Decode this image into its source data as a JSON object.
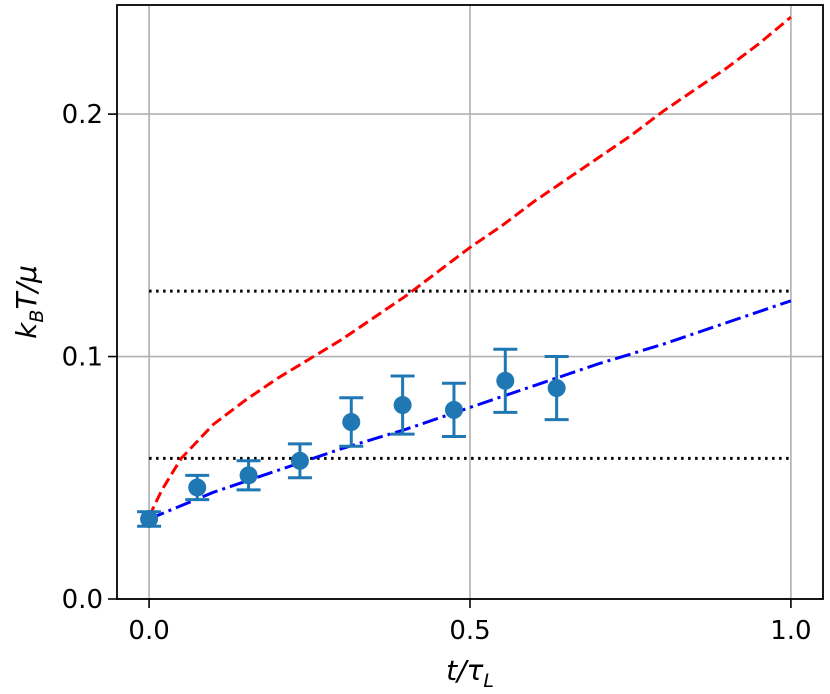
{
  "chart_data": {
    "type": "scatter",
    "title": "",
    "xlabel": "t/τ",
    "xlabel_sub": "L",
    "ylabel": "k",
    "ylabel_sub": "B",
    "ylabel_rest": "T/μ",
    "xlim": [
      -0.05,
      1.05
    ],
    "ylim": [
      0.0,
      0.245
    ],
    "xticks": [
      {
        "value": 0.0,
        "label": "0.0"
      },
      {
        "value": 0.5,
        "label": "0.5"
      },
      {
        "value": 1.0,
        "label": "1.0"
      }
    ],
    "yticks": [
      {
        "value": 0.0,
        "label": "0.0"
      },
      {
        "value": 0.1,
        "label": "0.1"
      },
      {
        "value": 0.2,
        "label": "0.2"
      }
    ],
    "grid": true,
    "legend": "none",
    "colors": {
      "points": "#1f77b4",
      "red_curve": "#ff0000",
      "blue_line": "#0000ff",
      "reference_lines": "#000000"
    },
    "series": [
      {
        "kind": "errorbar-points",
        "x": [
          0.0,
          0.075,
          0.155,
          0.235,
          0.315,
          0.395,
          0.475,
          0.555,
          0.635
        ],
        "y": [
          0.033,
          0.046,
          0.051,
          0.057,
          0.073,
          0.08,
          0.078,
          0.09,
          0.087
        ],
        "err": [
          0.003,
          0.005,
          0.006,
          0.007,
          0.01,
          0.012,
          0.011,
          0.013,
          0.013
        ]
      },
      {
        "kind": "dashed-curve",
        "x": [
          0.0,
          0.02,
          0.05,
          0.1,
          0.15,
          0.2,
          0.25,
          0.3,
          0.35,
          0.4,
          0.45,
          0.5,
          0.55,
          0.6,
          0.65,
          0.7,
          0.75,
          0.8,
          0.85,
          0.9,
          0.95,
          1.0
        ],
        "y": [
          0.034,
          0.045,
          0.058,
          0.072,
          0.082,
          0.091,
          0.099,
          0.107,
          0.116,
          0.125,
          0.135,
          0.145,
          0.154,
          0.164,
          0.173,
          0.182,
          0.191,
          0.201,
          0.21,
          0.219,
          0.229,
          0.24
        ]
      },
      {
        "kind": "dashdot-line",
        "x": [
          0.0,
          0.1,
          0.2,
          0.3,
          0.4,
          0.5,
          0.6,
          0.7,
          0.8,
          0.9,
          1.0
        ],
        "y": [
          0.033,
          0.044,
          0.053,
          0.062,
          0.07,
          0.079,
          0.088,
          0.097,
          0.105,
          0.114,
          0.123
        ]
      }
    ],
    "reference_lines": [
      0.058,
      0.127
    ]
  }
}
